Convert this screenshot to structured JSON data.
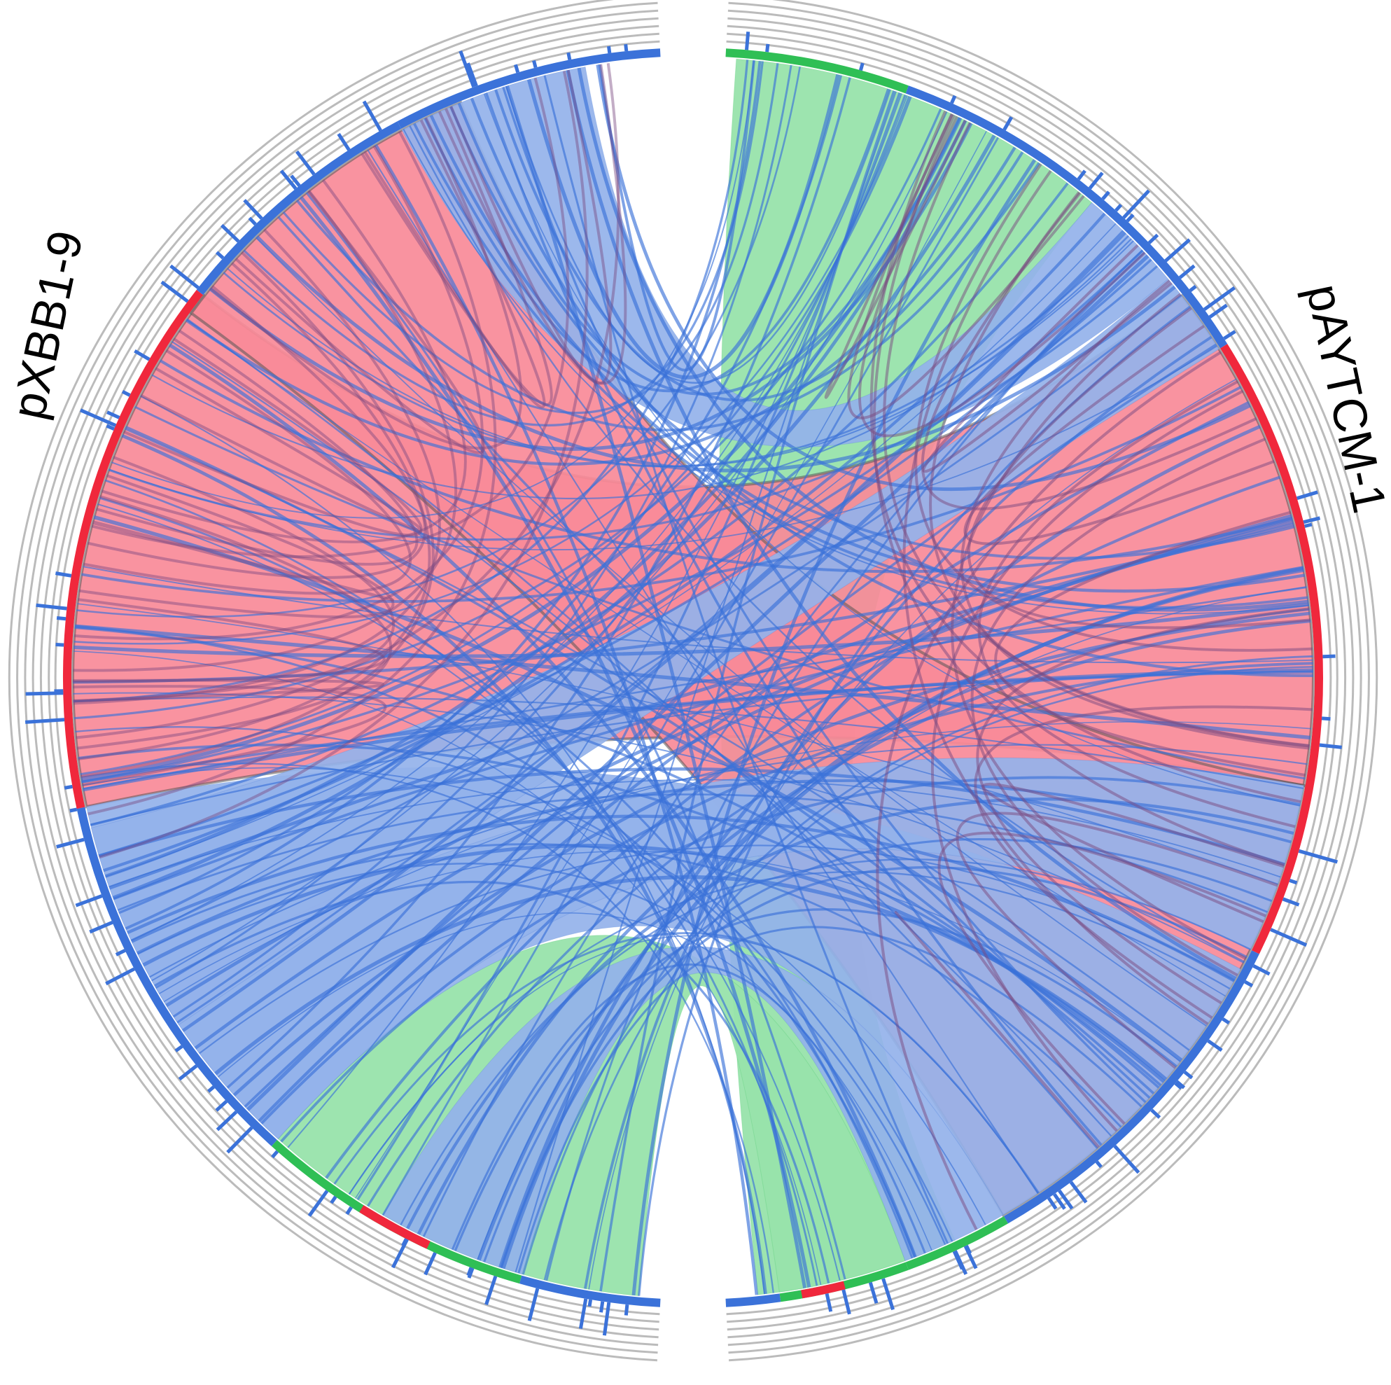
{
  "plasmids": {
    "left": {
      "name": "pXBB1-9"
    },
    "right": {
      "name": "pAYTCM-1"
    }
  },
  "colors": {
    "forward_match": "#3b72d9",
    "inverted_match": "#f0283c",
    "other_match": "#2fbf55",
    "forward_fill": "#94b2ea",
    "inverted_fill": "#f98a98",
    "other_fill": "#98e3ab",
    "track_ring": "#bbbbbb"
  },
  "segments": {
    "left_start_deg": 183,
    "left_end_deg": 357,
    "right_start_deg": 3,
    "right_end_deg": 177
  },
  "links": [
    {
      "type": "other",
      "a": [
        4,
        40
      ],
      "b": [
        155,
        174
      ]
    },
    {
      "type": "other",
      "a": [
        160,
        172
      ],
      "b": [
        185,
        222
      ]
    },
    {
      "type": "inverted",
      "a": [
        52,
        100
      ],
      "b": [
        258,
        308
      ]
    },
    {
      "type": "inverted",
      "a": [
        100,
        150
      ],
      "b": [
        306,
        338
      ]
    },
    {
      "type": "forward",
      "a": [
        40,
        50
      ],
      "b": [
        332,
        350
      ]
    },
    {
      "type": "forward",
      "a": [
        118,
        150
      ],
      "b": [
        222,
        258
      ]
    },
    {
      "type": "forward",
      "a": [
        100,
        116
      ],
      "b": [
        222,
        240
      ]
    },
    {
      "type": "forward",
      "a": [
        150,
        160
      ],
      "b": [
        196,
        210
      ]
    },
    {
      "type": "forward",
      "a": [
        50,
        58
      ],
      "b": [
        236,
        256
      ]
    }
  ]
}
